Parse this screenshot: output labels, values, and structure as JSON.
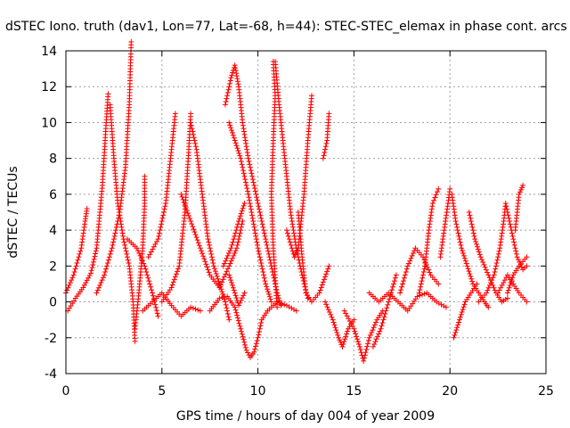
{
  "chart_data": {
    "type": "scatter",
    "title": "dSTEC Iono. truth (dav1, Lon=77, Lat=-68, h=44): STEC-STEC_elemax in phase cont. arcs",
    "xlabel": "GPS time / hours of day 004 of year 2009",
    "ylabel": "dSTEC  / TECUs",
    "xlim": [
      0,
      25
    ],
    "ylim": [
      -4,
      14
    ],
    "xticks": [
      0,
      5,
      10,
      15,
      20,
      25
    ],
    "yticks": [
      -4,
      -2,
      0,
      2,
      4,
      6,
      8,
      10,
      12,
      14
    ],
    "grid": true,
    "marker": "+",
    "color": "#ff0000",
    "arcs": [
      [
        [
          0.0,
          0.5
        ],
        [
          0.4,
          1.5
        ],
        [
          0.8,
          3.0
        ],
        [
          1.0,
          4.5
        ],
        [
          1.1,
          5.2
        ]
      ],
      [
        [
          0.1,
          -0.5
        ],
        [
          0.5,
          0.2
        ],
        [
          0.9,
          0.8
        ],
        [
          1.3,
          1.6
        ],
        [
          1.6,
          3.0
        ],
        [
          1.9,
          6.5
        ],
        [
          2.1,
          10.0
        ],
        [
          2.2,
          11.6
        ]
      ],
      [
        [
          1.6,
          0.5
        ],
        [
          2.0,
          1.5
        ],
        [
          2.4,
          3.0
        ],
        [
          2.8,
          5.0
        ],
        [
          3.1,
          7.5
        ],
        [
          3.3,
          11.0
        ],
        [
          3.4,
          14.5
        ]
      ],
      [
        [
          2.3,
          11.0
        ],
        [
          2.5,
          8.0
        ],
        [
          2.7,
          5.5
        ],
        [
          3.0,
          3.5
        ],
        [
          3.3,
          2.0
        ],
        [
          3.5,
          0.0
        ],
        [
          3.6,
          -2.2
        ]
      ],
      [
        [
          3.2,
          3.5
        ],
        [
          3.7,
          3.0
        ],
        [
          4.1,
          2.0
        ],
        [
          4.5,
          0.5
        ],
        [
          4.8,
          -0.8
        ]
      ],
      [
        [
          3.6,
          -1.5
        ],
        [
          3.8,
          0.5
        ],
        [
          4.0,
          3.0
        ],
        [
          4.1,
          5.5
        ],
        [
          4.1,
          7.0
        ]
      ],
      [
        [
          4.3,
          2.5
        ],
        [
          4.8,
          3.5
        ],
        [
          5.2,
          5.5
        ],
        [
          5.5,
          8.5
        ],
        [
          5.7,
          10.5
        ]
      ],
      [
        [
          5.0,
          0.0
        ],
        [
          5.5,
          0.8
        ],
        [
          5.9,
          2.0
        ],
        [
          6.2,
          5.0
        ],
        [
          6.4,
          8.5
        ],
        [
          6.5,
          10.5
        ]
      ],
      [
        [
          6.5,
          10.0
        ],
        [
          6.8,
          8.5
        ],
        [
          7.1,
          6.0
        ],
        [
          7.4,
          3.5
        ],
        [
          7.7,
          2.0
        ],
        [
          8.0,
          1.0
        ],
        [
          8.3,
          0.0
        ],
        [
          8.5,
          -1.0
        ]
      ],
      [
        [
          6.0,
          6.0
        ],
        [
          6.5,
          4.5
        ],
        [
          7.0,
          3.0
        ],
        [
          7.5,
          1.5
        ],
        [
          8.0,
          0.8
        ],
        [
          8.5,
          2.0
        ],
        [
          8.9,
          3.0
        ],
        [
          9.2,
          4.5
        ]
      ],
      [
        [
          4.0,
          -0.5
        ],
        [
          4.5,
          0.0
        ],
        [
          5.0,
          0.5
        ],
        [
          5.5,
          -0.2
        ],
        [
          6.0,
          -0.8
        ],
        [
          6.5,
          -0.3
        ],
        [
          7.0,
          -0.5
        ]
      ],
      [
        [
          7.5,
          -0.5
        ],
        [
          8.0,
          0.2
        ],
        [
          8.4,
          0.3
        ],
        [
          8.8,
          -0.3
        ],
        [
          9.1,
          -1.5
        ],
        [
          9.4,
          -2.7
        ],
        [
          9.6,
          -3.1
        ],
        [
          9.8,
          -2.8
        ],
        [
          10.0,
          -2.0
        ],
        [
          10.2,
          -1.0
        ],
        [
          10.5,
          -0.5
        ],
        [
          11.0,
          0.0
        ],
        [
          11.5,
          -0.2
        ],
        [
          12.0,
          -0.5
        ]
      ],
      [
        [
          8.2,
          2.0
        ],
        [
          8.6,
          3.0
        ],
        [
          9.0,
          4.5
        ],
        [
          9.3,
          5.5
        ]
      ],
      [
        [
          8.5,
          1.5
        ],
        [
          8.8,
          0.5
        ],
        [
          9.0,
          -0.2
        ],
        [
          9.3,
          0.5
        ]
      ],
      [
        [
          8.3,
          11.0
        ],
        [
          8.6,
          12.5
        ],
        [
          8.8,
          13.2
        ],
        [
          9.0,
          12.0
        ],
        [
          9.2,
          10.0
        ],
        [
          9.5,
          8.0
        ],
        [
          9.9,
          6.0
        ],
        [
          10.3,
          4.0
        ],
        [
          10.7,
          2.0
        ],
        [
          11.0,
          0.5
        ],
        [
          11.2,
          -0.2
        ]
      ],
      [
        [
          8.5,
          10.0
        ],
        [
          8.8,
          9.0
        ],
        [
          9.1,
          8.0
        ],
        [
          9.5,
          6.0
        ],
        [
          10.0,
          3.0
        ],
        [
          10.4,
          1.0
        ],
        [
          10.7,
          0.0
        ]
      ],
      [
        [
          11.0,
          -0.3
        ],
        [
          10.8,
          3.0
        ],
        [
          10.7,
          6.0
        ],
        [
          10.8,
          9.0
        ],
        [
          10.9,
          11.5
        ],
        [
          10.8,
          13.4
        ]
      ],
      [
        [
          10.9,
          13.4
        ],
        [
          11.1,
          11.0
        ],
        [
          11.4,
          8.0
        ],
        [
          11.7,
          5.0
        ],
        [
          12.0,
          3.0
        ],
        [
          12.3,
          1.5
        ],
        [
          12.6,
          0.2
        ]
      ],
      [
        [
          11.5,
          4.0
        ],
        [
          11.9,
          2.5
        ],
        [
          12.1,
          3.0
        ],
        [
          12.4,
          6.0
        ],
        [
          12.6,
          9.0
        ],
        [
          12.8,
          11.5
        ]
      ],
      [
        [
          12.1,
          5.0
        ],
        [
          12.3,
          2.5
        ],
        [
          12.5,
          0.5
        ],
        [
          12.8,
          0.0
        ],
        [
          13.2,
          0.5
        ],
        [
          13.7,
          2.0
        ]
      ],
      [
        [
          13.4,
          8.0
        ],
        [
          13.6,
          9.0
        ],
        [
          13.7,
          10.5
        ]
      ],
      [
        [
          13.5,
          0.0
        ],
        [
          13.9,
          -1.0
        ],
        [
          14.2,
          -2.0
        ],
        [
          14.4,
          -2.5
        ],
        [
          14.7,
          -1.5
        ],
        [
          15.0,
          -1.0
        ]
      ],
      [
        [
          14.5,
          -0.5
        ],
        [
          15.0,
          -1.5
        ],
        [
          15.3,
          -2.5
        ],
        [
          15.5,
          -3.3
        ],
        [
          15.8,
          -2.0
        ],
        [
          16.2,
          -1.0
        ],
        [
          16.5,
          -0.5
        ]
      ],
      [
        [
          16.0,
          -2.5
        ],
        [
          16.4,
          -1.5
        ],
        [
          16.8,
          0.0
        ],
        [
          17.2,
          1.5
        ]
      ],
      [
        [
          15.8,
          0.5
        ],
        [
          16.3,
          0.0
        ],
        [
          16.8,
          0.5
        ],
        [
          17.3,
          0.0
        ],
        [
          17.8,
          -0.5
        ],
        [
          18.3,
          0.3
        ],
        [
          18.8,
          0.5
        ],
        [
          19.3,
          0.0
        ],
        [
          19.8,
          -0.3
        ]
      ],
      [
        [
          17.4,
          0.5
        ],
        [
          17.8,
          2.0
        ],
        [
          18.2,
          3.0
        ],
        [
          18.6,
          2.5
        ],
        [
          19.0,
          1.5
        ],
        [
          19.4,
          1.0
        ]
      ],
      [
        [
          18.4,
          0.5
        ],
        [
          18.7,
          2.0
        ],
        [
          18.9,
          4.0
        ],
        [
          19.1,
          5.5
        ],
        [
          19.4,
          6.3
        ]
      ],
      [
        [
          19.5,
          2.5
        ],
        [
          19.7,
          4.0
        ],
        [
          19.9,
          5.5
        ],
        [
          20.0,
          6.3
        ]
      ],
      [
        [
          20.1,
          6.0
        ],
        [
          20.3,
          4.5
        ],
        [
          20.6,
          3.0
        ],
        [
          20.9,
          2.0
        ],
        [
          21.2,
          1.0
        ],
        [
          21.5,
          0.5
        ],
        [
          21.8,
          0.0
        ],
        [
          22.0,
          -0.3
        ]
      ],
      [
        [
          20.2,
          -2.0
        ],
        [
          20.5,
          -1.0
        ],
        [
          20.8,
          0.0
        ],
        [
          21.1,
          0.5
        ],
        [
          21.4,
          1.0
        ]
      ],
      [
        [
          21.0,
          5.0
        ],
        [
          21.3,
          3.5
        ],
        [
          21.6,
          2.5
        ],
        [
          22.0,
          1.5
        ],
        [
          22.4,
          0.5
        ],
        [
          22.7,
          0.0
        ],
        [
          23.0,
          0.2
        ]
      ],
      [
        [
          21.5,
          0.0
        ],
        [
          21.9,
          0.5
        ],
        [
          22.3,
          1.5
        ],
        [
          22.6,
          3.0
        ],
        [
          22.8,
          4.5
        ],
        [
          22.9,
          5.5
        ],
        [
          23.2,
          4.0
        ],
        [
          23.5,
          2.5
        ],
        [
          23.8,
          1.8
        ],
        [
          24.0,
          2.0
        ]
      ],
      [
        [
          22.5,
          0.5
        ],
        [
          23.0,
          1.5
        ],
        [
          23.3,
          1.0
        ],
        [
          23.6,
          0.5
        ],
        [
          24.0,
          0.0
        ]
      ],
      [
        [
          23.0,
          0.5
        ],
        [
          23.3,
          1.5
        ],
        [
          23.6,
          2.0
        ],
        [
          24.0,
          2.5
        ]
      ],
      [
        [
          23.4,
          4.0
        ],
        [
          23.6,
          6.0
        ],
        [
          23.8,
          6.5
        ]
      ]
    ]
  }
}
